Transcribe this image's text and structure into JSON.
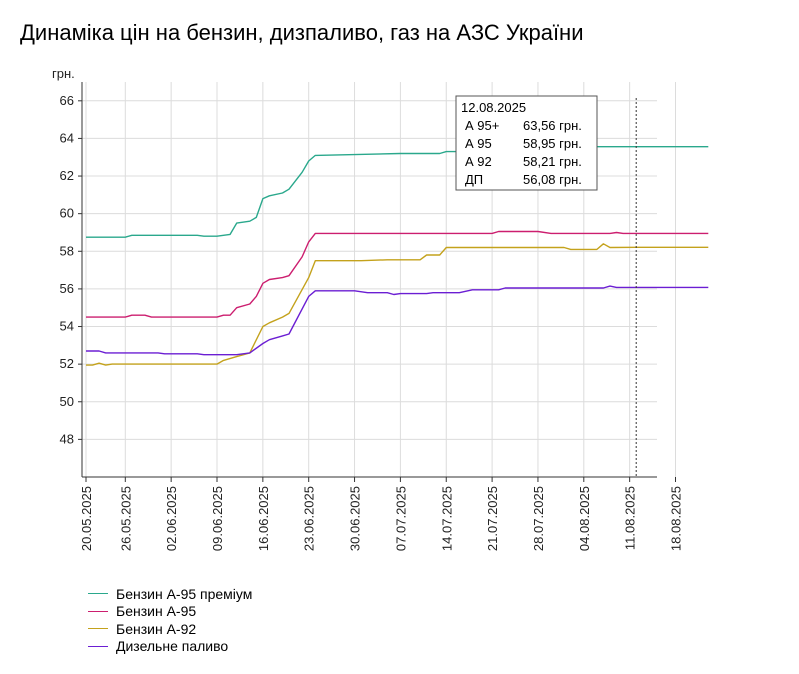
{
  "title": "Динаміка цін на бензин, дизпаливо, газ на АЗС України",
  "chart_data": {
    "type": "line",
    "ylabel": "грн.",
    "ylim": [
      46,
      67
    ],
    "yticks": [
      48,
      50,
      52,
      54,
      56,
      58,
      60,
      62,
      64,
      66
    ],
    "x_start": "20.05.2025",
    "x_tick_labels": [
      "20.05.2025",
      "26.05.2025",
      "02.06.2025",
      "09.06.2025",
      "16.06.2025",
      "23.06.2025",
      "30.06.2025",
      "07.07.2025",
      "14.07.2025",
      "21.07.2025",
      "28.07.2025",
      "04.08.2025",
      "11.08.2025",
      "18.08.2025"
    ],
    "grid": true,
    "legend_position": "bottom-left",
    "colors": {
      "a95p": "#2aa88c",
      "a95": "#cc1e6f",
      "a92": "#c4a21c",
      "dp": "#6b1ed3"
    },
    "series": [
      {
        "name": "Бензин А-95 преміум",
        "key": "a95p",
        "x": [
          "20.05.2025",
          "26.05.2025",
          "27.05.2025",
          "06.06.2025",
          "07.06.2025",
          "09.06.2025",
          "10.06.2025",
          "11.06.2025",
          "12.06.2025",
          "14.06.2025",
          "15.06.2025",
          "16.06.2025",
          "17.06.2025",
          "19.06.2025",
          "20.06.2025",
          "22.06.2025",
          "23.06.2025",
          "24.06.2025",
          "07.07.2025",
          "13.07.2025",
          "14.07.2025",
          "16.07.2025",
          "17.07.2025",
          "19.07.2025",
          "23.08.2025"
        ],
        "values": [
          58.75,
          58.75,
          58.85,
          58.85,
          58.8,
          58.8,
          58.85,
          58.9,
          59.5,
          59.6,
          59.8,
          60.8,
          60.95,
          61.1,
          61.3,
          62.2,
          62.8,
          63.1,
          63.2,
          63.2,
          63.3,
          63.3,
          63.5,
          63.56,
          63.56
        ]
      },
      {
        "name": "Бензин А-95",
        "key": "a95",
        "x": [
          "20.05.2025",
          "26.05.2025",
          "27.05.2025",
          "29.05.2025",
          "30.05.2025",
          "09.06.2025",
          "10.06.2025",
          "11.06.2025",
          "12.06.2025",
          "14.06.2025",
          "15.06.2025",
          "16.06.2025",
          "17.06.2025",
          "19.06.2025",
          "20.06.2025",
          "22.06.2025",
          "23.06.2025",
          "24.06.2025",
          "07.07.2025",
          "21.07.2025",
          "22.07.2025",
          "28.07.2025",
          "30.07.2025",
          "08.08.2025",
          "09.08.2025",
          "10.08.2025",
          "23.08.2025"
        ],
        "values": [
          54.5,
          54.5,
          54.6,
          54.6,
          54.5,
          54.5,
          54.6,
          54.6,
          55.0,
          55.2,
          55.6,
          56.3,
          56.5,
          56.6,
          56.7,
          57.7,
          58.5,
          58.95,
          58.95,
          58.95,
          59.05,
          59.05,
          58.95,
          58.95,
          59.0,
          58.95,
          58.95
        ]
      },
      {
        "name": "Бензин А-92",
        "key": "a92",
        "x": [
          "20.05.2025",
          "21.05.2025",
          "22.05.2025",
          "23.05.2025",
          "24.05.2025",
          "09.06.2025",
          "10.06.2025",
          "12.06.2025",
          "14.06.2025",
          "16.06.2025",
          "17.06.2025",
          "19.06.2025",
          "20.06.2025",
          "23.06.2025",
          "24.06.2025",
          "30.06.2025",
          "01.07.2025",
          "05.07.2025",
          "06.07.2025",
          "10.07.2025",
          "11.07.2025",
          "13.07.2025",
          "14.07.2025",
          "01.08.2025",
          "02.08.2025",
          "06.08.2025",
          "07.08.2025",
          "08.08.2025",
          "12.08.2025",
          "23.08.2025"
        ],
        "values": [
          51.95,
          51.95,
          52.05,
          51.95,
          52.0,
          52.0,
          52.2,
          52.4,
          52.6,
          54.0,
          54.2,
          54.5,
          54.7,
          56.6,
          57.5,
          57.5,
          57.5,
          57.55,
          57.55,
          57.55,
          57.8,
          57.8,
          58.2,
          58.2,
          58.1,
          58.1,
          58.4,
          58.2,
          58.21,
          58.21
        ]
      },
      {
        "name": "Дизельне паливо",
        "key": "dp",
        "x": [
          "20.05.2025",
          "22.05.2025",
          "23.05.2025",
          "31.05.2025",
          "01.06.2025",
          "06.06.2025",
          "07.06.2025",
          "12.06.2025",
          "14.06.2025",
          "16.06.2025",
          "17.06.2025",
          "19.06.2025",
          "20.06.2025",
          "23.06.2025",
          "24.06.2025",
          "30.06.2025",
          "02.07.2025",
          "05.07.2025",
          "06.07.2025",
          "07.07.2025",
          "11.07.2025",
          "12.07.2025",
          "16.07.2025",
          "18.07.2025",
          "22.07.2025",
          "23.07.2025",
          "07.08.2025",
          "08.08.2025",
          "09.08.2025",
          "23.08.2025"
        ],
        "values": [
          52.7,
          52.7,
          52.6,
          52.6,
          52.55,
          52.55,
          52.5,
          52.5,
          52.6,
          53.1,
          53.3,
          53.5,
          53.6,
          55.6,
          55.9,
          55.9,
          55.8,
          55.8,
          55.7,
          55.75,
          55.75,
          55.8,
          55.8,
          55.95,
          55.95,
          56.05,
          56.05,
          56.15,
          56.08,
          56.08
        ]
      }
    ],
    "hover_date": "12.08.2025",
    "tooltip": {
      "date": "12.08.2025",
      "rows": [
        {
          "label": "А 95+",
          "value": "63,56 грн."
        },
        {
          "label": "А 95",
          "value": "58,95 грн."
        },
        {
          "label": "А 92",
          "value": "58,21 грн."
        },
        {
          "label": "ДП",
          "value": "56,08 грн."
        }
      ]
    }
  }
}
